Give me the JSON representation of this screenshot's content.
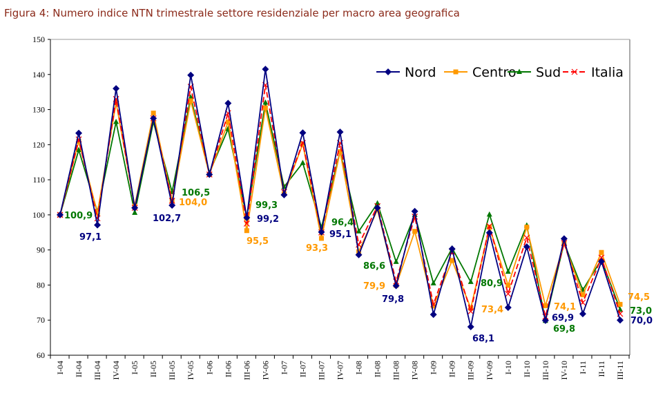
{
  "title": "Figura 4: Numero indice NTN trimestrale settore residenziale per macro area geografica",
  "chart_data": {
    "type": "line",
    "title": "Figura 4: Numero indice NTN trimestrale settore residenziale per macro area geografica",
    "xlabel": "",
    "ylabel": "",
    "ylim": [
      60,
      150
    ],
    "yticks": [
      "60",
      "70",
      "80",
      "90",
      "100",
      "110",
      "120",
      "130",
      "140",
      "150"
    ],
    "grid": false,
    "legend": "top-right",
    "categories": [
      "I-04",
      "II-04",
      "III-04",
      "IV-04",
      "I-05",
      "II-05",
      "III-05",
      "IV-05",
      "I-06",
      "II-06",
      "III-06",
      "IV-06",
      "I-07",
      "II-07",
      "III-07",
      "IV-07",
      "I-08",
      "II-08",
      "III-08",
      "IV-08",
      "I-09",
      "II-09",
      "III-09",
      "IV-09",
      "I-10",
      "II-10",
      "III-10",
      "IV-10",
      "I-11",
      "II-11",
      "III-11"
    ],
    "series": [
      {
        "name": "Nord",
        "color": "#000080",
        "marker": "diamond",
        "dash": false,
        "values": [
          100,
          123.3,
          97.1,
          136,
          102,
          127.5,
          102.7,
          139.8,
          111.5,
          131.8,
          99.2,
          141.5,
          105.7,
          123.4,
          95.1,
          123.6,
          88.6,
          102,
          79.8,
          101,
          71.6,
          90.3,
          68.1,
          94.9,
          73.6,
          90.9,
          69.9,
          93.2,
          71.8,
          86.7,
          70.0
        ]
      },
      {
        "name": "Centro",
        "color": "#ff9900",
        "marker": "square",
        "dash": false,
        "values": [
          100,
          121,
          100.5,
          132,
          102.5,
          129,
          104.0,
          132.5,
          111.5,
          126.5,
          95.5,
          130.5,
          106,
          120.2,
          93.3,
          118,
          89.5,
          101.5,
          79.9,
          95.3,
          74,
          87,
          73.4,
          96.5,
          79.9,
          96.5,
          74.1,
          91.8,
          77.2,
          89.3,
          74.5
        ]
      },
      {
        "name": "Sud",
        "color": "#007700",
        "marker": "triangle",
        "dash": false,
        "values": [
          100,
          118.5,
          100.9,
          126.5,
          100.6,
          126.5,
          106.5,
          133.5,
          112,
          124.5,
          99.3,
          132,
          108,
          114.8,
          96.4,
          118,
          95.3,
          103.3,
          86.6,
          100,
          80.5,
          90.5,
          80.9,
          100.1,
          83.8,
          97,
          69.8,
          92,
          78.6,
          87.3,
          73.0
        ]
      },
      {
        "name": "Italia",
        "color": "#ff0000",
        "marker": "x",
        "dash": true,
        "values": [
          100,
          121.5,
          99,
          133,
          102,
          127.5,
          104,
          136.5,
          111.5,
          129,
          97.5,
          137,
          106.5,
          120.5,
          95,
          120.5,
          91.5,
          102.5,
          81,
          99.5,
          74.5,
          89.5,
          72.5,
          96.8,
          77.5,
          93.5,
          71,
          92,
          75,
          87.8,
          71.8
        ]
      }
    ],
    "annotations": [
      {
        "text": "100,9",
        "series": "Sud"
      },
      {
        "text": "97,1",
        "series": "Nord"
      },
      {
        "text": "102,7",
        "series": "Nord"
      },
      {
        "text": "106,5",
        "series": "Sud"
      },
      {
        "text": "104,0",
        "series": "Centro"
      },
      {
        "text": "99,3",
        "series": "Sud"
      },
      {
        "text": "99,2",
        "series": "Nord"
      },
      {
        "text": "95,5",
        "series": "Centro"
      },
      {
        "text": "93,3",
        "series": "Centro"
      },
      {
        "text": "96,4",
        "series": "Sud"
      },
      {
        "text": "95,1",
        "series": "Nord"
      },
      {
        "text": "86,6",
        "series": "Sud"
      },
      {
        "text": "79,9",
        "series": "Centro"
      },
      {
        "text": "79,8",
        "series": "Nord"
      },
      {
        "text": "68,1",
        "series": "Nord"
      },
      {
        "text": "80,9",
        "series": "Sud"
      },
      {
        "text": "73,4",
        "series": "Centro"
      },
      {
        "text": "74,1",
        "series": "Centro"
      },
      {
        "text": "69,9",
        "series": "Nord"
      },
      {
        "text": "69,8",
        "series": "Sud"
      },
      {
        "text": "74,5",
        "series": "Centro"
      },
      {
        "text": "73,0",
        "series": "Sud"
      },
      {
        "text": "70,0",
        "series": "Nord"
      }
    ]
  }
}
